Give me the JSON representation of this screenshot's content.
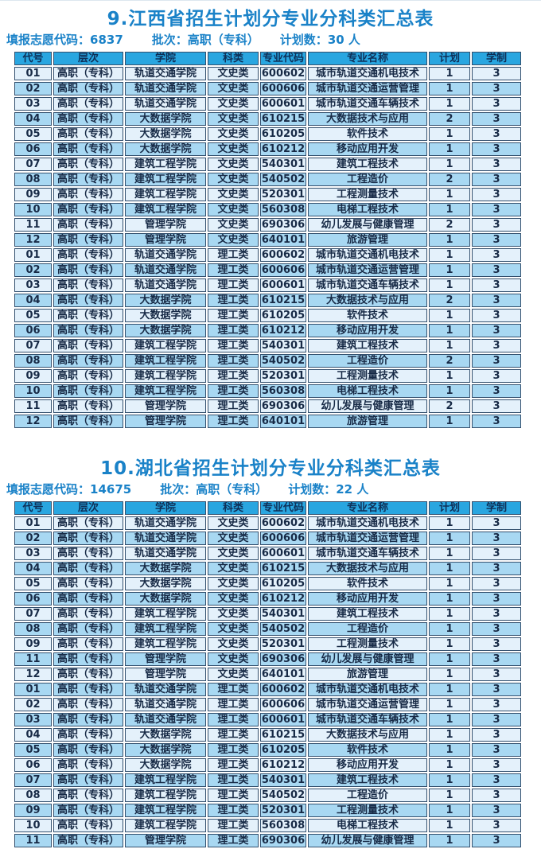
{
  "colors": {
    "title_blue": "#1a82c8",
    "header_bg": "#29a6e0",
    "header_text": "#0e2f57",
    "row_light": "#e4f1fb",
    "row_blue": "#a8d8f2",
    "border": "#33506e",
    "cell_text": "#172a46"
  },
  "tables": [
    {
      "title": "9.江西省招生计划分专业分科类汇总表",
      "info": {
        "code_label": "填报志愿代码：",
        "code": "6837",
        "batch_label": "批次：",
        "batch": "高职（专科）",
        "plan_label": "计划数：",
        "plan_value": "30 人"
      },
      "headers": [
        "代号",
        "层次",
        "学院",
        "科类",
        "专业代码",
        "专业名称",
        "计划",
        "学制"
      ],
      "rows": [
        [
          "01",
          "高职（专科）",
          "轨道交通学院",
          "文史类",
          "600602",
          "城市轨道交通机电技术",
          "1",
          "3"
        ],
        [
          "02",
          "高职（专科）",
          "轨道交通学院",
          "文史类",
          "600606",
          "城市轨道交通运营管理",
          "1",
          "3"
        ],
        [
          "03",
          "高职（专科）",
          "轨道交通学院",
          "文史类",
          "600601",
          "城市轨道交通车辆技术",
          "1",
          "3"
        ],
        [
          "04",
          "高职（专科）",
          "大数据学院",
          "文史类",
          "610215",
          "大数据技术与应用",
          "2",
          "3"
        ],
        [
          "05",
          "高职（专科）",
          "大数据学院",
          "文史类",
          "610205",
          "软件技术",
          "1",
          "3"
        ],
        [
          "06",
          "高职（专科）",
          "大数据学院",
          "文史类",
          "610212",
          "移动应用开发",
          "1",
          "3"
        ],
        [
          "07",
          "高职（专科）",
          "建筑工程学院",
          "文史类",
          "540301",
          "建筑工程技术",
          "1",
          "3"
        ],
        [
          "08",
          "高职（专科）",
          "建筑工程学院",
          "文史类",
          "540502",
          "工程造价",
          "2",
          "3"
        ],
        [
          "09",
          "高职（专科）",
          "建筑工程学院",
          "文史类",
          "520301",
          "工程测量技术",
          "1",
          "3"
        ],
        [
          "10",
          "高职（专科）",
          "建筑工程学院",
          "文史类",
          "560308",
          "电梯工程技术",
          "1",
          "3"
        ],
        [
          "11",
          "高职（专科）",
          "管理学院",
          "文史类",
          "690306",
          "幼儿发展与健康管理",
          "2",
          "3"
        ],
        [
          "12",
          "高职（专科）",
          "管理学院",
          "文史类",
          "640101",
          "旅游管理",
          "1",
          "3"
        ],
        [
          "01",
          "高职（专科）",
          "轨道交通学院",
          "理工类",
          "600602",
          "城市轨道交通机电技术",
          "1",
          "3"
        ],
        [
          "02",
          "高职（专科）",
          "轨道交通学院",
          "理工类",
          "600606",
          "城市轨道交通运营管理",
          "1",
          "3"
        ],
        [
          "03",
          "高职（专科）",
          "轨道交通学院",
          "理工类",
          "600601",
          "城市轨道交通车辆技术",
          "1",
          "3"
        ],
        [
          "04",
          "高职（专科）",
          "大数据学院",
          "理工类",
          "610215",
          "大数据技术与应用",
          "2",
          "3"
        ],
        [
          "05",
          "高职（专科）",
          "大数据学院",
          "理工类",
          "610205",
          "软件技术",
          "1",
          "3"
        ],
        [
          "06",
          "高职（专科）",
          "大数据学院",
          "理工类",
          "610212",
          "移动应用开发",
          "1",
          "3"
        ],
        [
          "07",
          "高职（专科）",
          "建筑工程学院",
          "理工类",
          "540301",
          "建筑工程技术",
          "1",
          "3"
        ],
        [
          "08",
          "高职（专科）",
          "建筑工程学院",
          "理工类",
          "540502",
          "工程造价",
          "2",
          "3"
        ],
        [
          "09",
          "高职（专科）",
          "建筑工程学院",
          "理工类",
          "520301",
          "工程测量技术",
          "1",
          "3"
        ],
        [
          "10",
          "高职（专科）",
          "建筑工程学院",
          "理工类",
          "560308",
          "电梯工程技术",
          "1",
          "3"
        ],
        [
          "11",
          "高职（专科）",
          "管理学院",
          "理工类",
          "690306",
          "幼儿发展与健康管理",
          "2",
          "3"
        ],
        [
          "12",
          "高职（专科）",
          "管理学院",
          "理工类",
          "640101",
          "旅游管理",
          "1",
          "3"
        ]
      ]
    },
    {
      "title": "10.湖北省招生计划分专业分科类汇总表",
      "info": {
        "code_label": "填报志愿代码：",
        "code": "14675",
        "batch_label": "批次：",
        "batch": "高职（专科）",
        "plan_label": "计划数：",
        "plan_value": "22 人"
      },
      "headers": [
        "代号",
        "层次",
        "学院",
        "科类",
        "专业代码",
        "专业名称",
        "计划",
        "学制"
      ],
      "rows": [
        [
          "01",
          "高职（专科）",
          "轨道交通学院",
          "文史类",
          "600602",
          "城市轨道交通机电技术",
          "1",
          "3"
        ],
        [
          "02",
          "高职（专科）",
          "轨道交通学院",
          "文史类",
          "600606",
          "城市轨道交通运营管理",
          "1",
          "3"
        ],
        [
          "03",
          "高职（专科）",
          "轨道交通学院",
          "文史类",
          "600601",
          "城市轨道交通车辆技术",
          "1",
          "3"
        ],
        [
          "04",
          "高职（专科）",
          "大数据学院",
          "文史类",
          "610215",
          "大数据技术与应用",
          "1",
          "3"
        ],
        [
          "05",
          "高职（专科）",
          "大数据学院",
          "文史类",
          "610205",
          "软件技术",
          "1",
          "3"
        ],
        [
          "06",
          "高职（专科）",
          "大数据学院",
          "文史类",
          "610212",
          "移动应用开发",
          "1",
          "3"
        ],
        [
          "07",
          "高职（专科）",
          "建筑工程学院",
          "文史类",
          "540301",
          "建筑工程技术",
          "1",
          "3"
        ],
        [
          "08",
          "高职（专科）",
          "建筑工程学院",
          "文史类",
          "540502",
          "工程造价",
          "1",
          "3"
        ],
        [
          "09",
          "高职（专科）",
          "建筑工程学院",
          "文史类",
          "520301",
          "工程测量技术",
          "1",
          "3"
        ],
        [
          "11",
          "高职（专科）",
          "管理学院",
          "文史类",
          "690306",
          "幼儿发展与健康管理",
          "1",
          "3"
        ],
        [
          "12",
          "高职（专科）",
          "管理学院",
          "文史类",
          "640101",
          "旅游管理",
          "1",
          "3"
        ],
        [
          "01",
          "高职（专科）",
          "轨道交通学院",
          "理工类",
          "600602",
          "城市轨道交通机电技术",
          "1",
          "3"
        ],
        [
          "02",
          "高职（专科）",
          "轨道交通学院",
          "理工类",
          "600606",
          "城市轨道交通运营管理",
          "1",
          "3"
        ],
        [
          "03",
          "高职（专科）",
          "轨道交通学院",
          "理工类",
          "600601",
          "城市轨道交通车辆技术",
          "1",
          "3"
        ],
        [
          "04",
          "高职（专科）",
          "大数据学院",
          "理工类",
          "610215",
          "大数据技术与应用",
          "1",
          "3"
        ],
        [
          "05",
          "高职（专科）",
          "大数据学院",
          "理工类",
          "610205",
          "软件技术",
          "1",
          "3"
        ],
        [
          "06",
          "高职（专科）",
          "大数据学院",
          "理工类",
          "610212",
          "移动应用开发",
          "1",
          "3"
        ],
        [
          "07",
          "高职（专科）",
          "建筑工程学院",
          "理工类",
          "540301",
          "建筑工程技术",
          "1",
          "3"
        ],
        [
          "08",
          "高职（专科）",
          "建筑工程学院",
          "理工类",
          "540502",
          "工程造价",
          "1",
          "3"
        ],
        [
          "09",
          "高职（专科）",
          "建筑工程学院",
          "理工类",
          "520301",
          "工程测量技术",
          "1",
          "3"
        ],
        [
          "10",
          "高职（专科）",
          "建筑工程学院",
          "理工类",
          "560308",
          "电梯工程技术",
          "1",
          "3"
        ],
        [
          "11",
          "高职（专科）",
          "管理学院",
          "理工类",
          "690306",
          "幼儿发展与健康管理",
          "1",
          "3"
        ]
      ]
    }
  ]
}
